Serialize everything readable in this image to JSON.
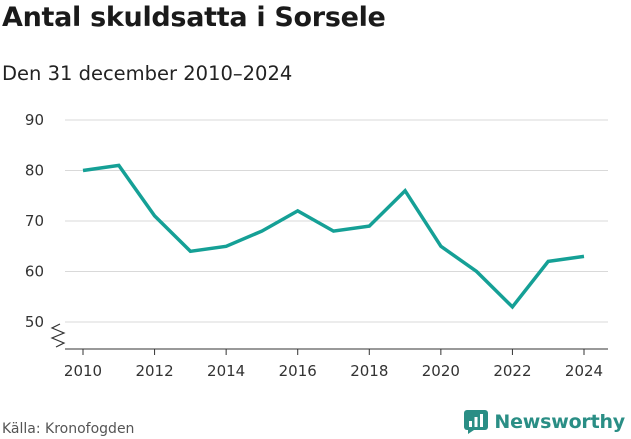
{
  "header": {
    "title": "Antal skuldsatta i Sorsele",
    "subtitle": "Den 31 december 2010–2024"
  },
  "footer": {
    "source": "Källa: Kronofogden",
    "brand": "Newsworthy",
    "brand_icon": "bar-chart-speech-bubble-icon"
  },
  "colors": {
    "line": "#15a096",
    "grid": "#d9d9d9",
    "axis": "#333333",
    "brand": "#2a8e85"
  },
  "chart_data": {
    "type": "line",
    "x": [
      2010,
      2011,
      2012,
      2013,
      2014,
      2015,
      2016,
      2017,
      2018,
      2019,
      2020,
      2021,
      2022,
      2023,
      2024
    ],
    "series": [
      {
        "values": [
          80,
          81,
          71,
          64,
          65,
          68,
          72,
          68,
          69,
          76,
          65,
          60,
          53,
          62,
          63
        ]
      }
    ],
    "x_ticks": [
      "2010",
      "2012",
      "2014",
      "2016",
      "2018",
      "2020",
      "2022",
      "2024"
    ],
    "y_ticks": [
      "50",
      "60",
      "70",
      "80",
      "90"
    ],
    "xlim": [
      2010,
      2024
    ],
    "ylim": [
      50,
      90
    ],
    "y_axis_break": true,
    "grid": "horizontal",
    "legend": "none"
  }
}
